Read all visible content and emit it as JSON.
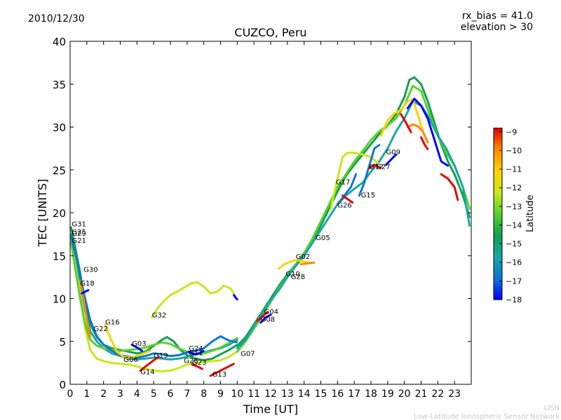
{
  "chart_data": {
    "type": "scatter",
    "title": "CUZCO, Peru",
    "date": "2010/12/30",
    "info_lines": [
      "rx_bias = 41.0",
      "elevation > 30"
    ],
    "xlabel": "Time [UT]",
    "ylabel": "TEC [UNITS]",
    "xlim": [
      0,
      24
    ],
    "ylim": [
      0,
      40
    ],
    "xticks": [
      "0",
      "1",
      "2",
      "3",
      "4",
      "5",
      "6",
      "7",
      "8",
      "9",
      "10",
      "11",
      "12",
      "13",
      "14",
      "15",
      "16",
      "17",
      "18",
      "19",
      "20",
      "21",
      "22",
      "23"
    ],
    "yticks": [
      "0",
      "5",
      "10",
      "15",
      "20",
      "25",
      "30",
      "35",
      "40"
    ],
    "grid": false,
    "colorbar": {
      "label": "Latitude",
      "range": [
        -18,
        -8.8
      ],
      "ticks": [
        "−9",
        "−10",
        "−11",
        "−12",
        "−13",
        "−14",
        "−15",
        "−16",
        "−17",
        "−18"
      ],
      "colors": [
        "#00007f",
        "#0000ff",
        "#007fff",
        "#00ffff",
        "#7fff7f",
        "#ffff00",
        "#ff7f00",
        "#ff0000",
        "#7f0000"
      ],
      "display_colors": [
        "#0000ff",
        "#0a78d2",
        "#1aa6a6",
        "#10a050",
        "#5ad02a",
        "#c8e81a",
        "#ffd200",
        "#ff8a00",
        "#e60000"
      ]
    },
    "prn_labels": [
      {
        "text": "G31",
        "x": 0.1,
        "y": 18.4
      },
      {
        "text": "G25",
        "x": 0.1,
        "y": 17.5
      },
      {
        "text": "G29",
        "x": 0.1,
        "y": 17.3
      },
      {
        "text": "G21",
        "x": 0.1,
        "y": 16.5
      },
      {
        "text": "G30",
        "x": 0.8,
        "y": 13.1
      },
      {
        "text": "G18",
        "x": 0.6,
        "y": 11.5
      },
      {
        "text": "G16",
        "x": 2.1,
        "y": 7.0
      },
      {
        "text": "G22",
        "x": 1.4,
        "y": 6.2
      },
      {
        "text": "G32",
        "x": 4.9,
        "y": 7.8
      },
      {
        "text": "G03",
        "x": 3.7,
        "y": 4.5
      },
      {
        "text": "G19",
        "x": 5.0,
        "y": 3.1
      },
      {
        "text": "G06",
        "x": 3.2,
        "y": 2.6
      },
      {
        "text": "G14",
        "x": 4.2,
        "y": 1.2
      },
      {
        "text": "G24",
        "x": 7.1,
        "y": 3.9
      },
      {
        "text": "G11",
        "x": 7.1,
        "y": 3.4
      },
      {
        "text": "G26",
        "x": 6.8,
        "y": 2.5
      },
      {
        "text": "G23",
        "x": 7.3,
        "y": 2.3
      },
      {
        "text": "G13",
        "x": 8.5,
        "y": 0.9
      },
      {
        "text": "G07",
        "x": 10.2,
        "y": 3.3
      },
      {
        "text": "G04",
        "x": 11.6,
        "y": 8.2
      },
      {
        "text": "G08",
        "x": 11.4,
        "y": 7.3
      },
      {
        "text": "G10",
        "x": 12.9,
        "y": 12.6
      },
      {
        "text": "G28",
        "x": 13.2,
        "y": 12.3
      },
      {
        "text": "G02",
        "x": 13.5,
        "y": 14.6
      },
      {
        "text": "G05",
        "x": 14.7,
        "y": 16.8
      },
      {
        "text": "G17",
        "x": 15.9,
        "y": 23.3
      },
      {
        "text": "G26",
        "x": 16.0,
        "y": 20.6
      },
      {
        "text": "G15",
        "x": 17.4,
        "y": 21.8
      },
      {
        "text": "G12",
        "x": 17.9,
        "y": 25.1
      },
      {
        "text": "G27",
        "x": 18.3,
        "y": 25.1
      },
      {
        "text": "G09",
        "x": 18.9,
        "y": 26.8
      }
    ],
    "series": [
      {
        "color": "#1aa6a6",
        "x": [
          0.05,
          0.3,
          0.6,
          0.9,
          1.2,
          1.6,
          2.0,
          2.5,
          3.0,
          3.5,
          4.0,
          4.5,
          5.0,
          5.5,
          6.0,
          6.5,
          7.0,
          7.5,
          8.0,
          8.5,
          9.0,
          9.5,
          10.0
        ],
        "y": [
          17.5,
          15.0,
          12.0,
          8.5,
          6.2,
          5.0,
          4.2,
          3.6,
          3.3,
          3.0,
          2.9,
          3.0,
          3.1,
          3.0,
          2.9,
          3.0,
          3.2,
          3.5,
          3.7,
          4.0,
          4.2,
          4.6,
          5.2
        ]
      },
      {
        "color": "#10a050",
        "x": [
          0.05,
          0.3,
          0.6,
          0.9,
          1.2,
          1.6,
          2.0,
          2.5,
          3.0,
          3.5,
          4.0,
          4.5,
          5.0,
          5.5,
          5.8,
          6.2,
          6.6,
          7.0,
          7.5,
          8.0,
          8.5,
          9.0,
          9.5,
          10.0
        ],
        "y": [
          18.3,
          16.0,
          13.0,
          9.5,
          7.0,
          5.5,
          4.6,
          4.2,
          4.0,
          3.8,
          3.6,
          3.8,
          4.5,
          5.2,
          5.5,
          5.0,
          4.0,
          3.4,
          3.0,
          2.8,
          3.0,
          3.5,
          4.0,
          4.6
        ]
      },
      {
        "color": "#c8e81a",
        "x": [
          0.05,
          0.3,
          0.6,
          0.9,
          1.2,
          1.6,
          2.0,
          2.5,
          3.0,
          3.5,
          4.0,
          4.5,
          5.0,
          5.5,
          6.0,
          6.5,
          7.0,
          7.5,
          8.0,
          8.5,
          9.0,
          9.5,
          10.0
        ],
        "y": [
          17.2,
          14.0,
          10.5,
          6.5,
          4.0,
          3.0,
          2.7,
          2.5,
          2.4,
          2.3,
          2.1,
          1.8,
          1.6,
          1.5,
          1.6,
          1.9,
          2.3,
          2.5,
          2.6,
          2.7,
          2.8,
          3.2,
          3.8
        ]
      },
      {
        "color": "#5ad02a",
        "x": [
          0.05,
          0.3,
          0.6,
          0.9,
          1.2,
          1.6,
          2.0,
          2.5,
          3.0,
          3.5,
          4.0,
          4.5,
          5.0,
          5.5,
          6.0,
          6.5,
          7.0,
          7.5,
          8.0,
          8.5,
          9.0,
          9.5,
          10.0
        ],
        "y": [
          16.6,
          13.5,
          10.0,
          7.0,
          5.2,
          4.5,
          4.2,
          4.0,
          3.9,
          4.0,
          4.1,
          4.3,
          4.6,
          4.9,
          4.7,
          4.2,
          3.8,
          3.5,
          3.6,
          3.9,
          4.3,
          4.8,
          5.4
        ]
      },
      {
        "color": "#0a78d2",
        "x": [
          0.05,
          0.4,
          0.8,
          1.2,
          1.6,
          2.0,
          2.5,
          3.0,
          3.5,
          4.0,
          4.5,
          5.0,
          5.5,
          6.0,
          6.5,
          7.0,
          7.5,
          8.0,
          8.5,
          9.0,
          9.5,
          10.0
        ],
        "y": [
          17.3,
          14.5,
          10.8,
          7.5,
          5.6,
          4.6,
          3.9,
          3.4,
          3.2,
          3.1,
          3.3,
          3.6,
          3.5,
          3.3,
          3.4,
          3.7,
          3.9,
          4.2,
          5.0,
          5.6,
          5.1,
          4.9
        ]
      },
      {
        "color": "#c8e81a",
        "x": [
          4.9,
          5.2,
          5.6,
          6.0,
          6.5,
          7.0,
          7.3,
          7.6,
          8.0,
          8.4,
          8.8,
          9.2,
          9.6,
          9.9
        ],
        "y": [
          7.8,
          8.8,
          9.7,
          10.4,
          10.9,
          11.5,
          11.8,
          11.9,
          11.4,
          10.6,
          10.8,
          11.5,
          11.2,
          10.2
        ]
      },
      {
        "color": "#0000ff",
        "x": [
          9.8,
          9.9,
          10.0
        ],
        "y": [
          10.4,
          10.1,
          9.9
        ]
      },
      {
        "color": "#ffd200",
        "x": [
          2.1,
          2.4,
          2.8,
          3.2,
          3.6,
          4.0,
          4.4,
          4.8
        ],
        "y": [
          7.0,
          5.4,
          3.8,
          3.2,
          3.1,
          3.3,
          3.6,
          3.9
        ]
      },
      {
        "color": "#e60000",
        "x": [
          4.2,
          4.6,
          5.0,
          5.3
        ],
        "y": [
          1.6,
          2.2,
          2.8,
          3.2
        ]
      },
      {
        "color": "#e60000",
        "x": [
          8.4,
          8.8,
          9.2,
          9.5,
          9.8
        ],
        "y": [
          1.0,
          1.4,
          1.8,
          2.1,
          2.4
        ]
      },
      {
        "color": "#10a050",
        "x": [
          10.0,
          10.5,
          11.0,
          11.5,
          12.0,
          12.5,
          13.0,
          13.5,
          14.0,
          14.5,
          15.0,
          15.5,
          16.0,
          16.5,
          17.0,
          17.5,
          18.0,
          18.5,
          19.0,
          19.5,
          20.0,
          20.3,
          20.6,
          21.0,
          21.4,
          21.8,
          22.2,
          22.6,
          23.0,
          23.5,
          23.9
        ],
        "y": [
          4.5,
          5.5,
          7.0,
          8.5,
          10.0,
          11.5,
          12.8,
          14.0,
          15.3,
          16.8,
          18.5,
          20.5,
          22.5,
          24.3,
          25.6,
          26.8,
          28.0,
          29.2,
          30.2,
          31.5,
          33.5,
          35.5,
          35.8,
          35.0,
          33.0,
          30.5,
          28.0,
          26.0,
          24.5,
          22.0,
          19.5
        ]
      },
      {
        "color": "#5ad02a",
        "x": [
          10.0,
          10.5,
          11.0,
          11.5,
          12.0,
          12.5,
          13.0,
          13.5,
          14.0,
          14.5,
          15.0,
          15.5,
          16.0,
          16.5,
          17.0,
          17.5,
          18.0,
          18.5,
          19.0,
          19.5,
          20.0,
          20.5,
          21.0,
          21.5,
          22.0,
          22.5,
          23.0,
          23.5,
          23.9
        ],
        "y": [
          3.8,
          5.0,
          6.5,
          8.0,
          9.6,
          11.2,
          12.6,
          14.0,
          15.3,
          17.0,
          19.0,
          21.0,
          23.0,
          24.5,
          26.0,
          27.2,
          28.5,
          29.5,
          30.2,
          31.0,
          32.5,
          34.8,
          34.2,
          31.5,
          29.0,
          27.0,
          25.5,
          23.0,
          20.5
        ]
      },
      {
        "color": "#1aa6a6",
        "x": [
          10.0,
          10.5,
          11.0,
          11.5,
          12.0,
          12.5,
          13.0,
          13.5,
          14.0,
          14.5,
          15.0,
          15.5,
          16.0,
          16.5,
          17.0,
          17.5,
          18.0,
          18.5,
          19.0,
          19.5,
          20.0,
          20.5,
          21.0,
          21.5,
          22.0,
          22.5,
          23.0,
          23.5,
          23.9
        ],
        "y": [
          4.2,
          5.2,
          6.8,
          8.3,
          9.8,
          11.0,
          12.5,
          13.8,
          15.0,
          16.5,
          18.0,
          19.5,
          21.0,
          22.0,
          22.8,
          23.5,
          24.8,
          26.0,
          27.5,
          29.5,
          31.0,
          33.0,
          32.5,
          31.0,
          29.0,
          27.5,
          25.5,
          23.0,
          18.5
        ]
      },
      {
        "color": "#ffd200",
        "x": [
          12.5,
          12.8,
          13.2,
          13.6,
          14.0,
          14.4
        ],
        "y": [
          13.5,
          14.0,
          14.3,
          14.5,
          14.3,
          14.1
        ]
      },
      {
        "color": "#ff8a00",
        "x": [
          13.8,
          14.2,
          14.6
        ],
        "y": [
          14.0,
          14.1,
          14.2
        ]
      },
      {
        "color": "#c8e81a",
        "x": [
          15.6,
          16.0,
          16.3,
          16.6,
          17.0,
          17.5,
          18.0,
          18.4
        ],
        "y": [
          20.5,
          24.0,
          26.5,
          27.0,
          27.0,
          26.8,
          26.5,
          25.8
        ]
      },
      {
        "color": "#ffd200",
        "x": [
          18.6,
          19.0,
          19.4,
          19.8,
          20.2,
          20.5,
          20.8,
          21.1
        ],
        "y": [
          29.0,
          30.8,
          31.6,
          32.0,
          33.0,
          33.2,
          31.5,
          29.5
        ]
      },
      {
        "color": "#ff8a00",
        "x": [
          20.2,
          20.5,
          20.8,
          21.1,
          21.4
        ],
        "y": [
          30.0,
          30.3,
          30.1,
          29.5,
          28.2
        ]
      },
      {
        "color": "#e60000",
        "x": [
          19.8,
          20.1,
          20.4
        ],
        "y": [
          31.5,
          30.5,
          29.4
        ]
      },
      {
        "color": "#e60000",
        "x": [
          21.0,
          21.2,
          21.4
        ],
        "y": [
          28.8,
          28.0,
          27.4
        ]
      },
      {
        "color": "#0000ff",
        "x": [
          20.2,
          20.6,
          21.0,
          21.4,
          21.8,
          22.2,
          22.6
        ],
        "y": [
          32.2,
          33.3,
          32.5,
          31.0,
          28.5,
          26.0,
          25.5
        ]
      },
      {
        "color": "#0000ff",
        "x": [
          18.9,
          19.2,
          19.5
        ],
        "y": [
          25.6,
          26.2,
          26.8
        ]
      },
      {
        "color": "#0a78d2",
        "x": [
          17.3,
          17.6,
          17.9,
          18.2,
          18.5
        ],
        "y": [
          22.0,
          23.5,
          25.5,
          27.5,
          27.9
        ]
      },
      {
        "color": "#0a78d2",
        "x": [
          16.0,
          16.4,
          16.8,
          17.1
        ],
        "y": [
          21.0,
          22.0,
          23.0,
          24.5
        ]
      },
      {
        "color": "#e60000",
        "x": [
          16.3,
          16.6,
          16.9
        ],
        "y": [
          22.0,
          21.6,
          21.2
        ]
      },
      {
        "color": "#e60000",
        "x": [
          22.2,
          22.6,
          23.0,
          23.2
        ],
        "y": [
          24.5,
          24.0,
          23.0,
          21.5
        ]
      },
      {
        "color": "#e60000",
        "x": [
          17.9,
          18.2,
          18.5
        ],
        "y": [
          25.2,
          25.6,
          25.3
        ]
      },
      {
        "color": "#ff8a00",
        "x": [
          0.6,
          0.8,
          1.0,
          1.2
        ],
        "y": [
          12.0,
          10.0,
          7.5,
          5.5
        ]
      },
      {
        "color": "#0000ff",
        "x": [
          0.7,
          0.9,
          1.1
        ],
        "y": [
          10.6,
          10.8,
          11.0
        ]
      },
      {
        "color": "#0000ff",
        "x": [
          3.7,
          4.0,
          4.3
        ],
        "y": [
          4.6,
          4.3,
          3.9
        ]
      },
      {
        "color": "#0000ff",
        "x": [
          7.1,
          7.4,
          7.7,
          8.0
        ],
        "y": [
          3.8,
          3.5,
          3.6,
          3.9
        ]
      },
      {
        "color": "#e60000",
        "x": [
          7.3,
          7.6,
          7.9
        ],
        "y": [
          2.3,
          2.1,
          1.8
        ]
      },
      {
        "color": "#e60000",
        "x": [
          11.2,
          11.5,
          11.8
        ],
        "y": [
          7.4,
          7.9,
          8.4
        ]
      },
      {
        "color": "#0000ff",
        "x": [
          11.4,
          11.7,
          12.0
        ],
        "y": [
          7.2,
          7.8,
          8.1
        ]
      }
    ]
  },
  "footer": {
    "brand": "LISN",
    "network": "Low-Latitude Ionospheric Sensor Network"
  }
}
